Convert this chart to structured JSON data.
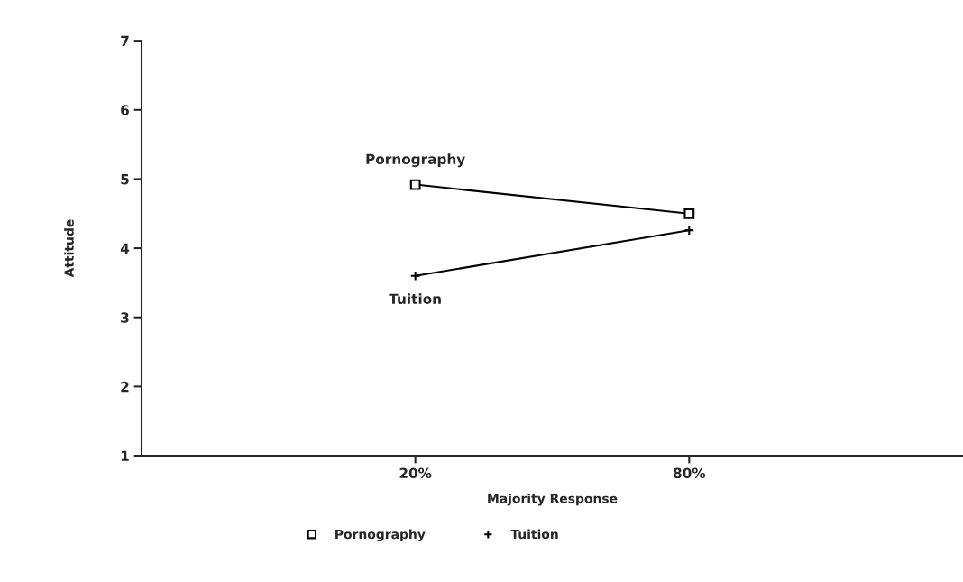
{
  "chart_data": {
    "type": "line",
    "xlabel": "Majority Response",
    "ylabel": "Attitude",
    "categories": [
      "20%",
      "80%"
    ],
    "series": [
      {
        "name": "Pornography",
        "color": "#000000",
        "marker": "square",
        "values": [
          4.92,
          4.5
        ]
      },
      {
        "name": "Tuition",
        "color": "#000000",
        "marker": "cross",
        "values": [
          3.6,
          4.26
        ]
      }
    ],
    "ylim": [
      1,
      7
    ],
    "yticks": [
      1,
      2,
      3,
      4,
      5,
      6,
      7
    ],
    "grid": false,
    "legend": "bottom"
  }
}
